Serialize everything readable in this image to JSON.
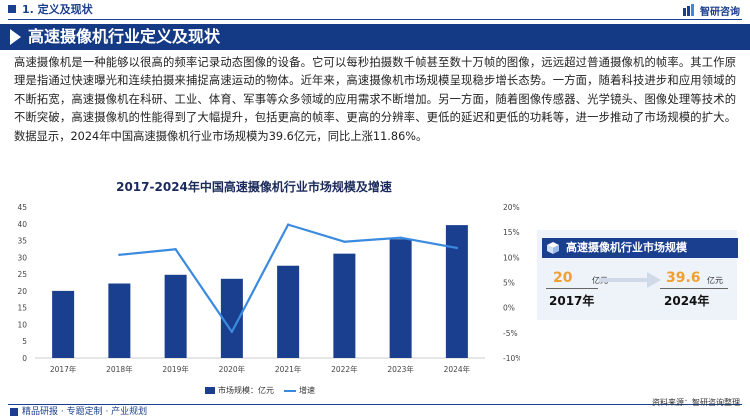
{
  "header": {
    "section": "1. 定义及现状",
    "logo": "智研咨询"
  },
  "banner": {
    "title": "高速摄像机行业定义及现状"
  },
  "body": {
    "paragraph": "高速摄像机是一种能够以很高的频率记录动态图像的设备。它可以每秒拍摄数千帧甚至数十万帧的图像，远远超过普通摄像机的帧率。其工作原理是指通过快速曝光和连续拍摄来捕捉高速运动的物体。近年来，高速摄像机市场规模呈现稳步增长态势。一方面，随着科技进步和应用领域的不断拓宽，高速摄像机在科研、工业、体育、军事等众多领域的应用需求不断增加。另一方面，随着图像传感器、光学镜头、图像处理等技术的不断突破，高速摄像机的性能得到了大幅提升，包括更高的帧率、更高的分辨率、更低的延迟和更低的功耗等，进一步推动了市场规模的扩大。数据显示，2024年中国高速摄像机行业市场规模为39.6亿元，同比上涨11.86%。"
  },
  "chart_data": {
    "type": "bar",
    "title": "2017-2024年中国高速摄像机行业市场规模及增速",
    "categories": [
      "2017年",
      "2018年",
      "2019年",
      "2020年",
      "2021年",
      "2022年",
      "2023年",
      "2024年"
    ],
    "series": [
      {
        "name": "市场规模：亿元",
        "type": "bar",
        "axis": "left",
        "values": [
          20,
          22.2,
          24.8,
          23.6,
          27.5,
          31.1,
          35.4,
          39.6
        ]
      },
      {
        "name": "增速",
        "type": "line",
        "axis": "right",
        "values": [
          null,
          10.5,
          11.6,
          -4.8,
          16.5,
          13.1,
          13.9,
          11.86
        ]
      }
    ],
    "y_left": {
      "min": 0,
      "max": 45,
      "step": 5,
      "ticks": [
        "0",
        "5",
        "10",
        "15",
        "20",
        "25",
        "30",
        "35",
        "40",
        "45"
      ]
    },
    "y_right": {
      "min": -10,
      "max": 20,
      "step": 5,
      "ticks": [
        "-10%",
        "-5%",
        "0%",
        "5%",
        "10%",
        "15%",
        "20%"
      ]
    },
    "legend_position": "bottom",
    "grid": false,
    "colors": {
      "bar": "#1a3f8f",
      "line": "#3a8be0"
    }
  },
  "panel": {
    "title": "高速摄像机行业市场规模",
    "start_value": "20",
    "start_unit": "亿元",
    "start_year": "2017年",
    "end_value": "39.6",
    "end_unit": "亿元",
    "end_year": "2024年"
  },
  "footer": {
    "left": "精品研报 · 专题定制 · 产业规划",
    "right": "资料来源：智研咨询整理"
  },
  "colors": {
    "brand": "#1a3f8f",
    "accent": "#f0a030",
    "banner": "#143a86"
  }
}
